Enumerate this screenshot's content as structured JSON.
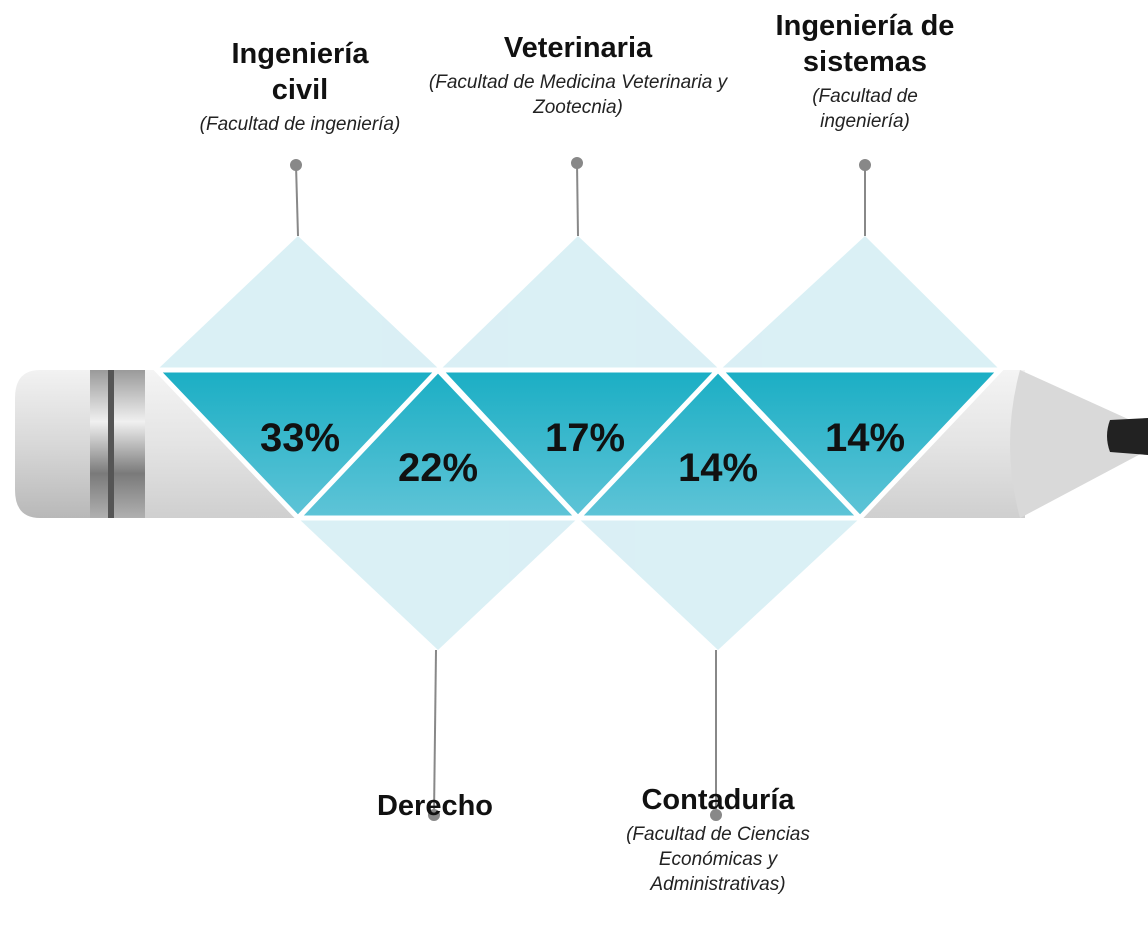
{
  "items": [
    {
      "title": "Ingeniería civil",
      "subtitle": "(Facultad de ingeniería)",
      "value": "33%"
    },
    {
      "title": "Derecho",
      "value": "22%"
    },
    {
      "title": "Veterinaria",
      "subtitle": "(Facultad de Medicina Veterinaria y Zootecnia)",
      "value": "17%"
    },
    {
      "title": "Contaduría",
      "subtitle": "(Facultad de Ciencias Económicas y Administrativas)",
      "value": "14%"
    },
    {
      "title": "Ingeniería de sistemas",
      "subtitle": "(Facultad de ingeniería)",
      "value": "14%"
    }
  ]
}
